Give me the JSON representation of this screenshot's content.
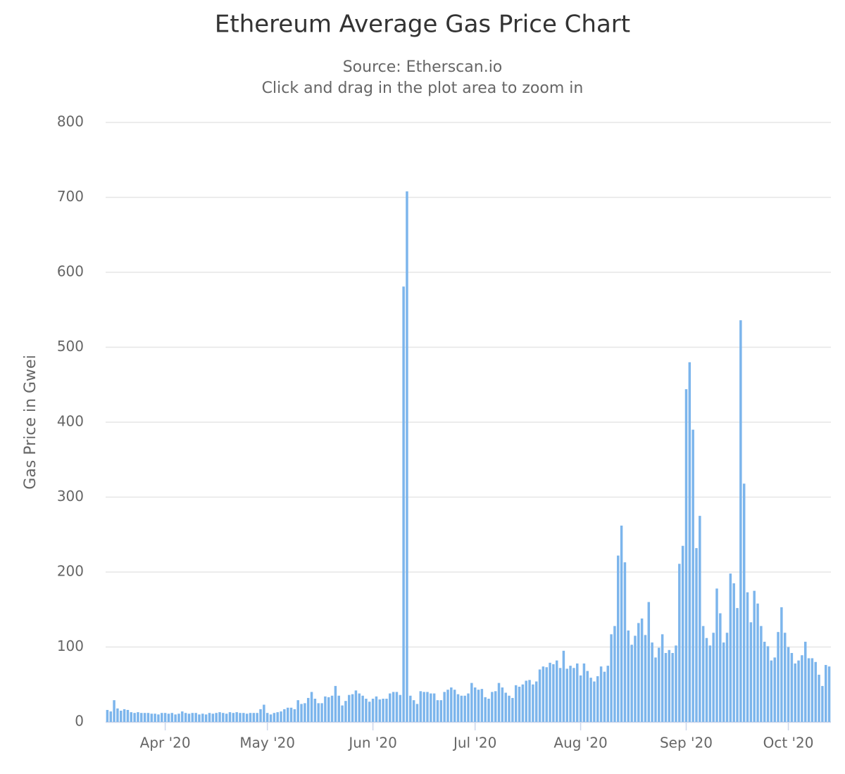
{
  "chart_data": {
    "type": "bar",
    "title": "Ethereum Average Gas Price Chart",
    "subtitle": [
      "Source: Etherscan.io",
      "Click and drag in the plot area to zoom in"
    ],
    "y_label": "Gas Price in Gwei",
    "color": "#7cb5ec",
    "grid": true,
    "ylim": [
      0,
      800
    ],
    "yticks": [
      0,
      100,
      200,
      300,
      400,
      500,
      600,
      700,
      800
    ],
    "categories": [
      null,
      null,
      null,
      null,
      null,
      null,
      null,
      null,
      null,
      null,
      null,
      null,
      null,
      null,
      null,
      null,
      null,
      "Apr '20",
      null,
      null,
      null,
      null,
      null,
      null,
      null,
      null,
      null,
      null,
      null,
      null,
      null,
      null,
      null,
      null,
      null,
      null,
      null,
      null,
      null,
      null,
      null,
      null,
      null,
      null,
      null,
      null,
      null,
      "May '20",
      null,
      null,
      null,
      null,
      null,
      null,
      null,
      null,
      null,
      null,
      null,
      null,
      null,
      null,
      null,
      null,
      null,
      null,
      null,
      null,
      null,
      null,
      null,
      null,
      null,
      null,
      null,
      null,
      null,
      null,
      "Jun '20",
      null,
      null,
      null,
      null,
      null,
      null,
      null,
      null,
      null,
      null,
      null,
      null,
      null,
      null,
      null,
      null,
      null,
      null,
      null,
      null,
      null,
      null,
      null,
      null,
      null,
      null,
      null,
      null,
      null,
      "Jul '20",
      null,
      null,
      null,
      null,
      null,
      null,
      null,
      null,
      null,
      null,
      null,
      null,
      null,
      null,
      null,
      null,
      null,
      null,
      null,
      null,
      null,
      null,
      null,
      null,
      null,
      null,
      null,
      null,
      null,
      null,
      "Aug '20",
      null,
      null,
      null,
      null,
      null,
      null,
      null,
      null,
      null,
      null,
      null,
      null,
      null,
      null,
      null,
      null,
      null,
      null,
      null,
      null,
      null,
      null,
      null,
      null,
      null,
      null,
      null,
      null,
      null,
      null,
      "Sep '20",
      null,
      null,
      null,
      null,
      null,
      null,
      null,
      null,
      null,
      null,
      null,
      null,
      null,
      null,
      null,
      null,
      null,
      null,
      null,
      null,
      null,
      null,
      null,
      null,
      null,
      null,
      null,
      null,
      null,
      "Oct '20",
      null,
      null,
      null,
      null,
      null,
      null,
      null,
      null,
      null,
      null,
      null,
      null
    ],
    "values": [
      16,
      14,
      29,
      18,
      15,
      17,
      16,
      13,
      12,
      13,
      12,
      12,
      12,
      11,
      11,
      10,
      12,
      12,
      11,
      12,
      10,
      11,
      14,
      12,
      11,
      12,
      12,
      10,
      11,
      10,
      12,
      11,
      12,
      13,
      12,
      11,
      13,
      12,
      13,
      12,
      12,
      11,
      12,
      12,
      12,
      17,
      23,
      12,
      10,
      12,
      13,
      14,
      17,
      19,
      19,
      17,
      29,
      24,
      25,
      32,
      40,
      31,
      25,
      25,
      34,
      33,
      35,
      48,
      35,
      22,
      28,
      36,
      37,
      42,
      38,
      35,
      31,
      27,
      31,
      34,
      30,
      31,
      31,
      38,
      40,
      40,
      36,
      581,
      708,
      35,
      29,
      24,
      41,
      40,
      40,
      38,
      38,
      29,
      29,
      40,
      43,
      46,
      43,
      37,
      35,
      35,
      38,
      52,
      46,
      43,
      44,
      33,
      31,
      40,
      41,
      52,
      46,
      39,
      35,
      32,
      49,
      47,
      50,
      55,
      56,
      50,
      54,
      70,
      74,
      73,
      79,
      77,
      82,
      72,
      95,
      71,
      75,
      72,
      78,
      62,
      78,
      68,
      59,
      54,
      61,
      74,
      67,
      75,
      117,
      128,
      222,
      262,
      213,
      122,
      103,
      115,
      132,
      138,
      116,
      160,
      106,
      86,
      99,
      117,
      92,
      96,
      92,
      102,
      211,
      235,
      444,
      480,
      390,
      232,
      275,
      128,
      112,
      102,
      119,
      178,
      145,
      106,
      119,
      198,
      185,
      152,
      536,
      318,
      173,
      133,
      175,
      158,
      128,
      107,
      101,
      82,
      86,
      120,
      153,
      119,
      100,
      92,
      78,
      82,
      89,
      107,
      85,
      85,
      80,
      63,
      48,
      76,
      74
    ]
  }
}
